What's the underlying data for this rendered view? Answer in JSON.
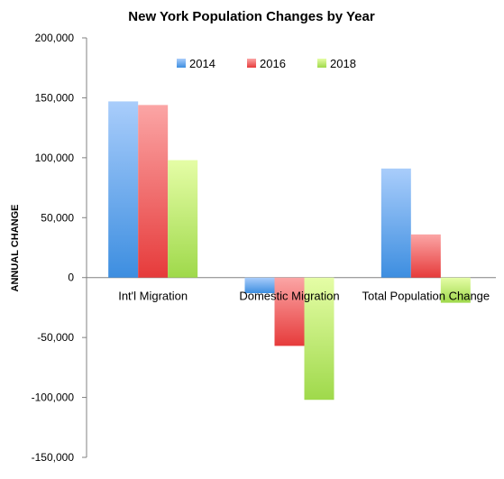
{
  "chart_data": {
    "type": "bar",
    "title": "New York Population Changes by Year",
    "ylabel": "ANNUAL CHANGE",
    "xlabel": "",
    "categories": [
      "Int'l Migration",
      "Domestic Migration",
      "Total Population Change"
    ],
    "series": [
      {
        "name": "2014",
        "values": [
          147000,
          -13000,
          91000
        ],
        "color_top": "#a9cdfb",
        "color_bottom": "#3d8ee0"
      },
      {
        "name": "2016",
        "values": [
          144000,
          -57000,
          36000
        ],
        "color_top": "#fba5a5",
        "color_bottom": "#e63b3b"
      },
      {
        "name": "2018",
        "values": [
          98000,
          -102000,
          -21000
        ],
        "color_top": "#e5fda6",
        "color_bottom": "#9fd94b"
      }
    ],
    "ylim": [
      -150000,
      200000
    ],
    "yticks": [
      200000,
      150000,
      100000,
      50000,
      0,
      -50000,
      -100000,
      -150000
    ],
    "ytick_labels": [
      "200,000",
      "150,000",
      "100,000",
      "50,000",
      "0",
      "-50,000",
      "-100,000",
      "-150,000"
    ],
    "grid": false,
    "legend_position": "top-center"
  }
}
